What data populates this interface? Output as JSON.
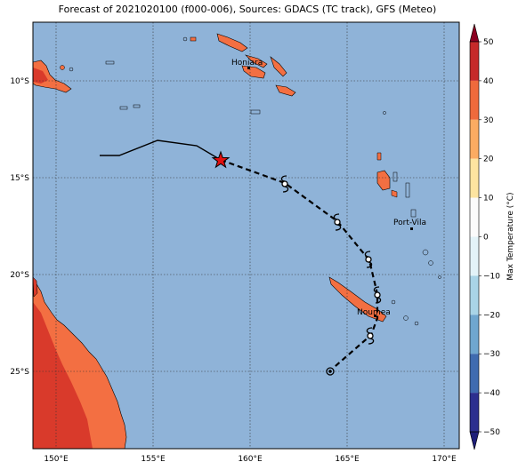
{
  "title": "Forecast of 2021020100 (f000-006), Sources: GDACS (TC track), GFS (Meteo)",
  "map": {
    "lon_ticks": [
      "150°E",
      "155°E",
      "160°E",
      "165°E",
      "170°E"
    ],
    "lat_ticks": [
      "10°S",
      "15°S",
      "20°S",
      "25°S"
    ],
    "places": [
      {
        "name": "Honiara"
      },
      {
        "name": "Port-Vila"
      },
      {
        "name": "Noumea"
      }
    ]
  },
  "colorbar": {
    "label": "Max Temperature (°C)",
    "ticks": [
      "50",
      "40",
      "30",
      "20",
      "10",
      "0",
      "−10",
      "−20",
      "−30",
      "−40",
      "−50"
    ],
    "colors": [
      "#8b0021",
      "#c62a2a",
      "#ef6a3c",
      "#fbab62",
      "#fde4a0",
      "#fbfbfb",
      "#e3f3f8",
      "#a9d4e7",
      "#6fa6cf",
      "#3f6bb0",
      "#2c2f8f",
      "#1e1e78"
    ]
  },
  "colors": {
    "ocean": "#8fb3d8",
    "land": "#f36f42",
    "land_hot": "#d93a2b",
    "track": "#000000",
    "current_position": "#e01010"
  }
}
